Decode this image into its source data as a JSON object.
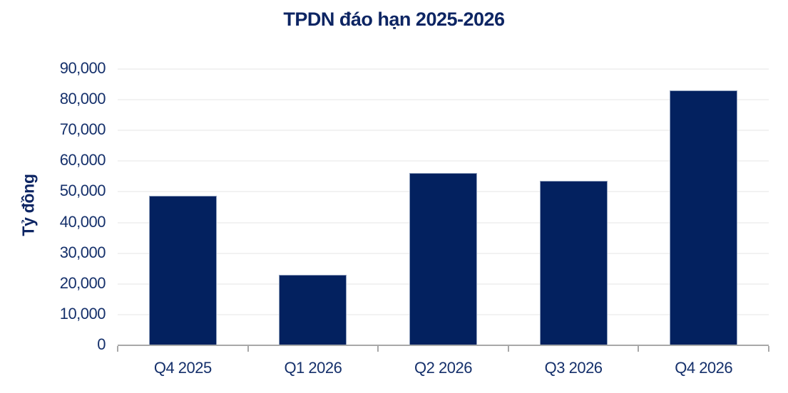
{
  "title": "TPDN đáo hạn 2025-2026",
  "chart_data": {
    "type": "bar",
    "title": "TPDN đáo hạn 2025-2026",
    "xlabel": "",
    "ylabel": "Tỷ đồng",
    "categories": [
      "Q4 2025",
      "Q1 2026",
      "Q2 2026",
      "Q3 2026",
      "Q4 2026"
    ],
    "values": [
      48400,
      22800,
      55900,
      53400,
      82900
    ],
    "ylim": [
      0,
      90000
    ],
    "ytick_values": [
      0,
      10000,
      20000,
      30000,
      40000,
      50000,
      60000,
      70000,
      80000,
      90000
    ],
    "ytick_labels": [
      "0",
      "10,000",
      "20,000",
      "30,000",
      "40,000",
      "50,000",
      "60,000",
      "70,000",
      "80,000",
      "90,000"
    ],
    "grid": "horizontal-only",
    "legend": "none",
    "units": "Tỷ đồng"
  },
  "colors": {
    "bar": "#03215f",
    "bar_edge": "#8fa0bd",
    "title_text": "#0d2563",
    "axis_text": "#15306b",
    "axis_line": "#a8a8a8",
    "gridline": "#f2f2f2",
    "background": "#ffffff"
  }
}
